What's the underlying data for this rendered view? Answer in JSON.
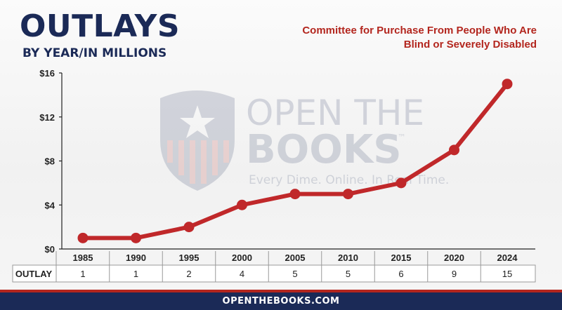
{
  "header": {
    "title": "OUTLAYS",
    "subtitle": "BY YEAR/IN MILLIONS",
    "committee_line1": "Committee for Purchase From People Who Are",
    "committee_line2": "Blind or Severely Disabled"
  },
  "watermark": {
    "line1": "OPEN THE",
    "line2": "BOOKS",
    "tm": "™",
    "tagline": "Every Dime. Online. In Real Time."
  },
  "footer": {
    "site": "OPENTHEBOOKS.COM"
  },
  "colors": {
    "navy": "#1b2a57",
    "red": "#b3261e",
    "line": "#c0282a"
  },
  "chart_data": {
    "type": "line",
    "categories": [
      "1985",
      "1990",
      "1995",
      "2000",
      "2005",
      "2010",
      "2015",
      "2020",
      "2024"
    ],
    "values": [
      1,
      1,
      2,
      4,
      5,
      5,
      6,
      9,
      15
    ],
    "ylim": [
      0,
      16
    ],
    "yticks": [
      0,
      4,
      8,
      12,
      16
    ],
    "ytick_labels": [
      "$0",
      "$4",
      "$8",
      "$12",
      "$16"
    ],
    "grid": false,
    "table_row_label": "OUTLAY",
    "table_values": [
      "1",
      "1",
      "2",
      "4",
      "5",
      "5",
      "6",
      "9",
      "15"
    ]
  }
}
